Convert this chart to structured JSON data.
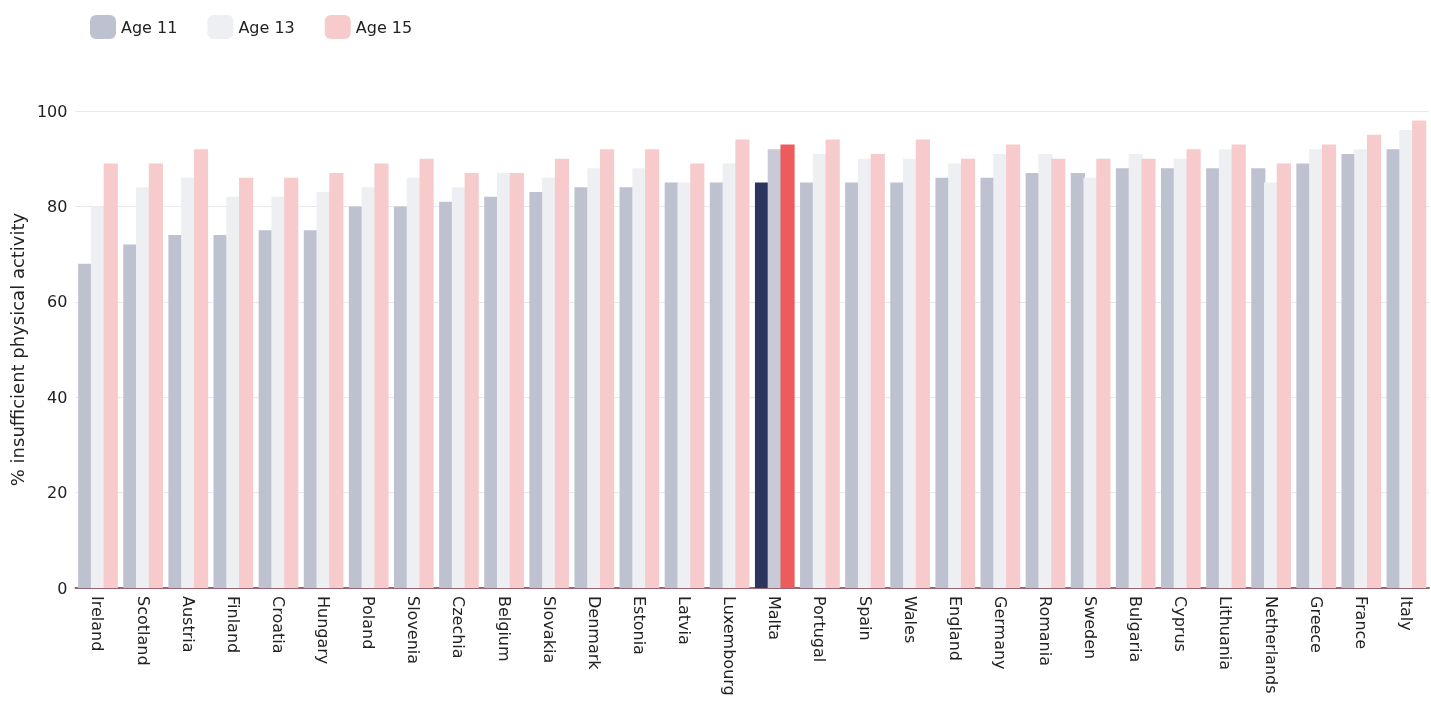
{
  "chart_data": {
    "type": "bar",
    "ylabel": "% insufficient physical activity",
    "categories": [
      "Ireland",
      "Scotland",
      "Austria",
      "Finland",
      "Croatia",
      "Hungary",
      "Poland",
      "Slovenia",
      "Czechia",
      "Belgium",
      "Slovakia",
      "Denmark",
      "Estonia",
      "Latvia",
      "Luxembourg",
      "Malta",
      "Portugal",
      "Spain",
      "Wales",
      "England",
      "Germany",
      "Romania",
      "Sweden",
      "Bulgaria",
      "Cyprus",
      "Lithuania",
      "Netherlands",
      "Greece",
      "France",
      "Italy"
    ],
    "series": [
      {
        "name": "Age 11",
        "color": "#bec2d0",
        "colors": [
          "#bec2d0",
          "#bec2d0",
          "#bec2d0",
          "#bec2d0",
          "#bec2d0",
          "#bec2d0",
          "#bec2d0",
          "#bec2d0",
          "#bec2d0",
          "#bec2d0",
          "#bec2d0",
          "#bec2d0",
          "#bec2d0",
          "#bec2d0",
          "#bec2d0",
          "#2b3560",
          "#bec2d0",
          "#bec2d0",
          "#bec2d0",
          "#bec2d0",
          "#bec2d0",
          "#bec2d0",
          "#bec2d0",
          "#bec2d0",
          "#bec2d0",
          "#bec2d0",
          "#bec2d0",
          "#bec2d0",
          "#bec2d0",
          "#bec2d0"
        ],
        "values": [
          68,
          72,
          74,
          74,
          75,
          75,
          80,
          80,
          81,
          82,
          83,
          84,
          84,
          85,
          85,
          85,
          85,
          85,
          85,
          86,
          86,
          87,
          87,
          88,
          88,
          88,
          88,
          89,
          91,
          92
        ]
      },
      {
        "name": "Age 13",
        "color": "#eeeff3",
        "colors": [
          "#eeeff3",
          "#eeeff3",
          "#eeeff3",
          "#eeeff3",
          "#eeeff3",
          "#eeeff3",
          "#eeeff3",
          "#eeeff3",
          "#eeeff3",
          "#eeeff3",
          "#eeeff3",
          "#eeeff3",
          "#eeeff3",
          "#eeeff3",
          "#eeeff3",
          "#c8cbd7",
          "#eeeff3",
          "#eeeff3",
          "#eeeff3",
          "#eeeff3",
          "#eeeff3",
          "#eeeff3",
          "#eeeff3",
          "#eeeff3",
          "#eeeff3",
          "#eeeff3",
          "#eeeff3",
          "#eeeff3",
          "#eeeff3",
          "#eeeff3"
        ],
        "values": [
          80,
          84,
          86,
          82,
          82,
          83,
          84,
          86,
          84,
          87,
          86,
          88,
          88,
          85,
          89,
          92,
          91,
          90,
          90,
          89,
          91,
          91,
          86,
          91,
          90,
          92,
          85,
          92,
          92,
          96
        ]
      },
      {
        "name": "Age 15",
        "color": "#f7cbcc",
        "colors": [
          "#f7cbcc",
          "#f7cbcc",
          "#f7cbcc",
          "#f7cbcc",
          "#f7cbcc",
          "#f7cbcc",
          "#f7cbcc",
          "#f7cbcc",
          "#f7cbcc",
          "#f7cbcc",
          "#f7cbcc",
          "#f7cbcc",
          "#f7cbcc",
          "#f7cbcc",
          "#f7cbcc",
          "#ec5c5d",
          "#f7cbcc",
          "#f7cbcc",
          "#f7cbcc",
          "#f7cbcc",
          "#f7cbcc",
          "#f7cbcc",
          "#f7cbcc",
          "#f7cbcc",
          "#f7cbcc",
          "#f7cbcc",
          "#f7cbcc",
          "#f7cbcc",
          "#f7cbcc",
          "#f7cbcc"
        ],
        "values": [
          89,
          89,
          92,
          86,
          86,
          87,
          89,
          90,
          87,
          87,
          90,
          92,
          92,
          89,
          94,
          93,
          94,
          91,
          94,
          90,
          93,
          90,
          90,
          90,
          92,
          93,
          89,
          93,
          95,
          98
        ]
      }
    ],
    "ylim": [
      0,
      100
    ],
    "yticks": [
      0,
      20,
      40,
      60,
      80,
      100
    ],
    "grid": "y",
    "legend": "top left"
  }
}
